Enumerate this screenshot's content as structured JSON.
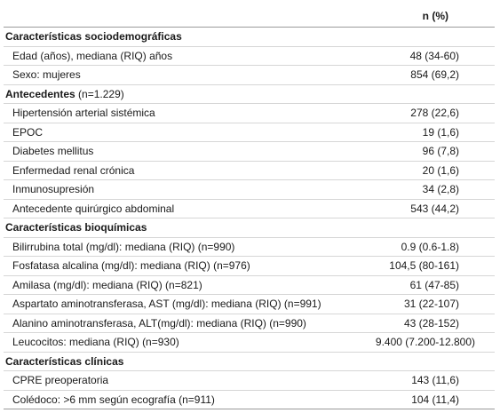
{
  "header": {
    "label": "",
    "value": "n (%)"
  },
  "sections": {
    "sociodemographic": {
      "title": "Características sociodemográficas",
      "rows": [
        {
          "label": "Edad (años), mediana (RIQ) años",
          "value": "48 (34-60)"
        },
        {
          "label": "Sexo: mujeres",
          "value": "854 (69,2)"
        }
      ]
    },
    "history": {
      "title": "Antecedentes",
      "note": "(n=1.229)",
      "rows": [
        {
          "label": "Hipertensión arterial sistémica",
          "value": "278 (22,6)"
        },
        {
          "label": "EPOC",
          "value": "19 (1,6)"
        },
        {
          "label": "Diabetes mellitus",
          "value": "96 (7,8)"
        },
        {
          "label": "Enfermedad renal crónica",
          "value": "20 (1,6)"
        },
        {
          "label": "Inmunosupresión",
          "value": "34 (2,8)"
        },
        {
          "label": "Antecedente quirúrgico abdominal",
          "value": "543 (44,2)"
        }
      ]
    },
    "biochemical": {
      "title": "Características bioquímicas",
      "rows": [
        {
          "label": "Bilirrubina total (mg/dl): mediana (RIQ) (n=990)",
          "value": "0.9 (0.6-1.8)"
        },
        {
          "label": "Fosfatasa alcalina (mg/dl): mediana (RIQ) (n=976)",
          "value": "104,5 (80-161)"
        },
        {
          "label": "Amilasa (mg/dl): mediana (RIQ) (n=821)",
          "value": "61 (47-85)"
        },
        {
          "label": "Aspartato aminotransferasa, AST (mg/dl): mediana (RIQ) (n=991)",
          "value": "31 (22-107)"
        },
        {
          "label": "Alanino aminotransferasa, ALT(mg/dl): mediana (RIQ) (n=990)",
          "value": "43 (28-152)"
        },
        {
          "label": "Leucocitos: mediana (RIQ) (n=930)",
          "value": "9.400 (7.200-12.800)"
        }
      ]
    },
    "clinical": {
      "title": "Características clínicas",
      "rows": [
        {
          "label": "CPRE preoperatoria",
          "value": "143 (11,6)"
        },
        {
          "label": "Colédoco: >6 mm según ecografía (n=911)",
          "value": "104 (11,4)"
        }
      ]
    }
  }
}
